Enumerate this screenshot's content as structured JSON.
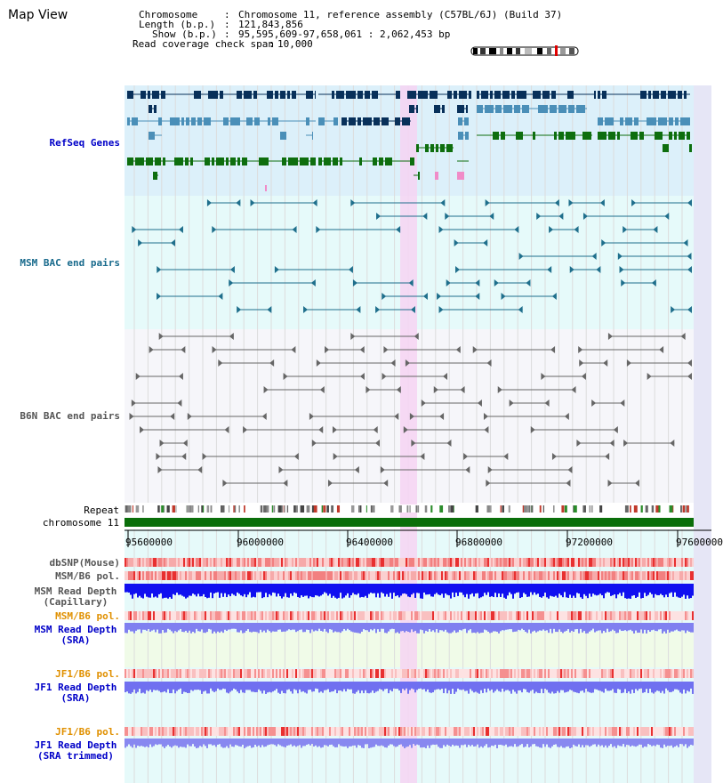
{
  "window": {
    "title": "Map View"
  },
  "header": {
    "chromosome_key": "Chromosome",
    "chromosome_val": "Chromosome 11, reference assembly (C57BL/6J) (Build 37)",
    "length_key": "Length (b.p.)",
    "length_val": "121,843,856",
    "show_key": "Show (b.p.)",
    "show_val": "95,595,609-97,658,061 : 2,062,453 bp",
    "coverage_key": "Read coverage check span",
    "coverage_val": "10,000"
  },
  "tracks": {
    "refseq": "RefSeq Genes",
    "msm_bac": "MSM BAC end pairs",
    "b6n_bac": "B6N BAC end pairs",
    "repeat": "Repeat",
    "chromosome": "chromosome 11",
    "dbsnp": "dbSNP(Mouse)",
    "msm_b6_pol_1": "MSM/B6 pol.",
    "msm_read_depth_1": "MSM Read Depth",
    "msm_read_depth_1_sub": "(Capillary)",
    "msm_b6_pol_2": "MSM/B6 pol.",
    "msm_read_depth_2": "MSM Read Depth",
    "msm_read_depth_2_sub": "(SRA)",
    "jf1_b6_pol_1": "JF1/B6 pol.",
    "jf1_read_depth_1": "JF1 Read Depth",
    "jf1_read_depth_1_sub": "(SRA)",
    "jf1_b6_pol_2": "JF1/B6 pol.",
    "jf1_read_depth_2": "JF1 Read Depth",
    "jf1_read_depth_2_sub": "(SRA trimmed)"
  },
  "axis": {
    "ticks": [
      "95600000",
      "96000000",
      "96400000",
      "96800000",
      "97200000",
      "97600000"
    ]
  },
  "colors": {
    "refseq_dark": "#08305a",
    "refseq_mid": "#4a8fb8",
    "refseq_green": "#0e6e0e",
    "refseq_bg": "#dcf0fa",
    "msm_bg": "#e6fafa",
    "b6n_bg": "#f6f6fa",
    "highlight": "#f6d4f2",
    "label_blue": "#0000c8",
    "label_teal": "#186a8c",
    "label_orange": "#e09000",
    "label_grey": "#555555"
  }
}
